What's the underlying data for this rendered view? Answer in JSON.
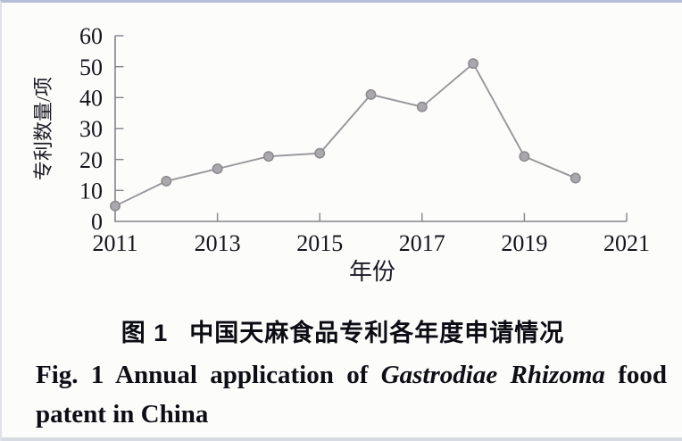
{
  "chart_data": {
    "type": "line",
    "title": "",
    "x": [
      2011,
      2012,
      2013,
      2014,
      2015,
      2016,
      2017,
      2018,
      2019,
      2020
    ],
    "values": [
      5,
      13,
      17,
      21,
      22,
      41,
      37,
      51,
      21,
      14
    ],
    "xlabel": "年份",
    "ylabel": "专利数量/项",
    "xlim": [
      2011,
      2021
    ],
    "ylim": [
      0,
      60
    ],
    "x_ticks": [
      2011,
      2013,
      2015,
      2017,
      2019,
      2021
    ],
    "y_ticks": [
      0,
      10,
      20,
      30,
      40,
      50,
      60
    ],
    "grid": false,
    "legend": "none",
    "colors": {
      "line": "#98959b",
      "marker_fill": "#aba8ad",
      "marker_stroke": "#8b888e",
      "axis": "#85828a",
      "tick_text": "#14141d"
    }
  },
  "captions": {
    "cn_fig_label": "图 1",
    "cn_title": "中国天麻食品专利各年度申请情况",
    "en_prefix": "Fig. 1",
    "en_segment1": "Annual application of",
    "en_italic": "Gastrodiae Rhizoma",
    "en_segment2": "food",
    "en_line2": "patent in China"
  }
}
